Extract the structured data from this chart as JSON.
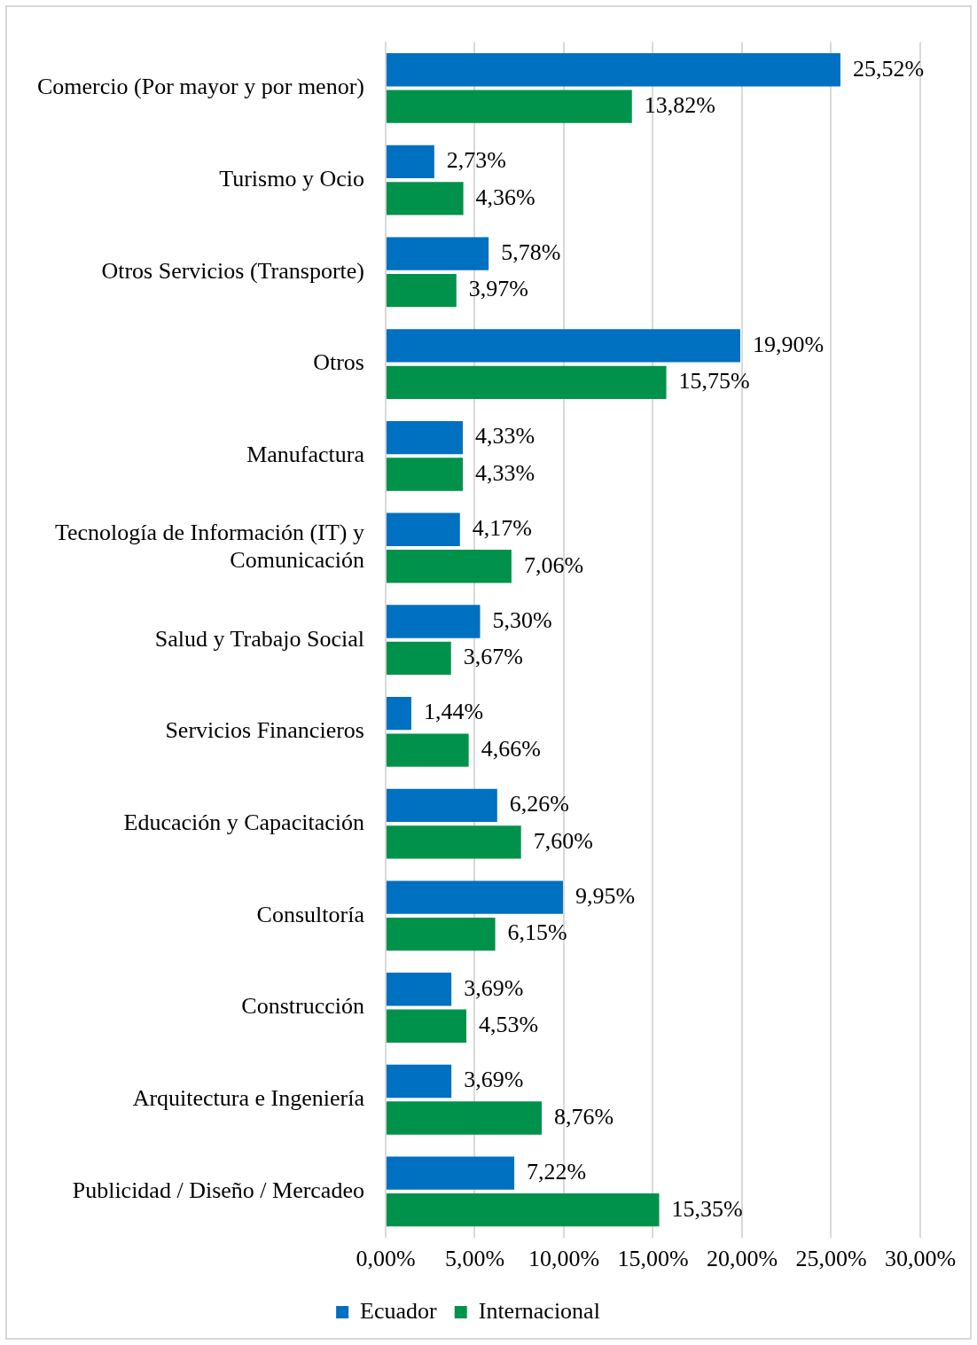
{
  "chart_data": {
    "type": "bar",
    "orientation": "horizontal",
    "categories": [
      "Comercio (Por mayor y por menor)",
      "Turismo y Ocio",
      "Otros Servicios (Transporte)",
      "Otros",
      "Manufactura",
      "Tecnología de Información (IT) y Comunicación",
      "Salud y Trabajo Social",
      "Servicios Financieros",
      "Educación y Capacitación",
      "Consultoría",
      "Construcción",
      "Arquitectura e Ingeniería",
      "Publicidad / Diseño / Mercadeo"
    ],
    "series": [
      {
        "name": "Ecuador",
        "color": "#0070c0",
        "values": [
          25.52,
          2.73,
          5.78,
          19.9,
          4.33,
          4.17,
          5.3,
          1.44,
          6.26,
          9.95,
          3.69,
          3.69,
          7.22
        ],
        "value_labels": [
          "25,52%",
          "2,73%",
          "5,78%",
          "19,90%",
          "4,33%",
          "4,17%",
          "5,30%",
          "1,44%",
          "6,26%",
          "9,95%",
          "3,69%",
          "3,69%",
          "7,22%"
        ]
      },
      {
        "name": "Internacional",
        "color": "#00924a",
        "values": [
          13.82,
          4.36,
          3.97,
          15.75,
          4.33,
          7.06,
          3.67,
          4.66,
          7.6,
          6.15,
          4.53,
          8.76,
          15.35
        ],
        "value_labels": [
          "13,82%",
          "4,36%",
          "3,97%",
          "15,75%",
          "4,33%",
          "7,06%",
          "3,67%",
          "4,66%",
          "7,60%",
          "6,15%",
          "4,53%",
          "8,76%",
          "15,35%"
        ]
      }
    ],
    "xlim": [
      0,
      30
    ],
    "xticks": [
      {
        "value": 0,
        "label": "0,00%"
      },
      {
        "value": 5,
        "label": "5,00%"
      },
      {
        "value": 10,
        "label": "10,00%"
      },
      {
        "value": 15,
        "label": "15,00%"
      },
      {
        "value": 20,
        "label": "20,00%"
      },
      {
        "value": 25,
        "label": "25,00%"
      },
      {
        "value": 30,
        "label": "30,00%"
      }
    ],
    "grid": "x",
    "legend": "bottom"
  }
}
